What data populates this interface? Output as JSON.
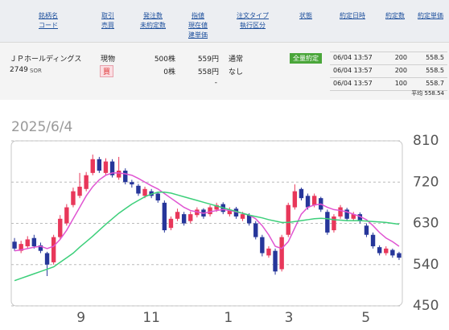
{
  "table": {
    "headers": [
      [
        "銘柄名",
        "コード"
      ],
      [
        "取引",
        "売買"
      ],
      [
        "発注数",
        "未約定数"
      ],
      [
        "指値",
        "現在値",
        "建単価"
      ],
      [
        "注文タイプ",
        "執行区分"
      ],
      [
        "状態"
      ],
      [
        "約定日時"
      ],
      [
        "約定数"
      ],
      [
        "約定単価"
      ]
    ],
    "order": {
      "name": "ＪＰホールディングス",
      "code": "2749",
      "market": "SOR",
      "account": "現物",
      "side": "買",
      "quantity": "500株",
      "unfilled": "0株",
      "limit_price": "559円",
      "current_price": "558円",
      "cost_price": "-",
      "order_type": "通常",
      "condition": "なし",
      "status": "全量約定"
    },
    "executions": [
      [
        "06/04 13:57",
        "200",
        "558.5"
      ],
      [
        "06/04 13:57",
        "200",
        "558.5"
      ],
      [
        "06/04 13:57",
        "100",
        "558.7"
      ]
    ],
    "average": "平均 558.54"
  },
  "chart_data": {
    "type": "candlestick",
    "title": "2025/6/4",
    "categories": [
      null,
      null,
      null,
      null,
      null,
      null,
      null,
      null,
      null,
      null,
      null,
      null,
      null,
      null,
      null,
      null,
      null,
      null,
      null,
      null,
      null,
      null,
      null,
      null,
      null,
      null,
      null,
      null,
      null,
      null,
      null,
      null,
      null,
      null,
      null,
      null,
      null,
      null,
      null,
      null,
      null,
      null,
      null,
      null,
      null,
      null,
      null,
      null,
      null,
      null,
      null,
      null,
      null,
      null,
      null,
      null,
      null,
      null,
      null,
      null
    ],
    "open": [
      590,
      570,
      580,
      598,
      582,
      565,
      545,
      600,
      630,
      670,
      690,
      705,
      740,
      770,
      740,
      765,
      730,
      745,
      720,
      712,
      690,
      700,
      695,
      675,
      620,
      640,
      650,
      635,
      648,
      660,
      650,
      660,
      672,
      650,
      662,
      640,
      648,
      630,
      600,
      560,
      570,
      530,
      605,
      665,
      705,
      690,
      670,
      685,
      655,
      615,
      645,
      660,
      640,
      650,
      625,
      605,
      578,
      565,
      572,
      565
    ],
    "high": [
      598,
      592,
      602,
      605,
      588,
      568,
      605,
      648,
      672,
      708,
      740,
      742,
      780,
      775,
      772,
      770,
      775,
      750,
      725,
      716,
      710,
      705,
      698,
      680,
      645,
      662,
      655,
      656,
      665,
      663,
      670,
      675,
      676,
      665,
      666,
      655,
      652,
      635,
      605,
      580,
      575,
      605,
      675,
      715,
      708,
      695,
      695,
      688,
      660,
      650,
      670,
      664,
      655,
      654,
      630,
      610,
      582,
      580,
      575,
      568
    ],
    "low": [
      570,
      565,
      575,
      575,
      565,
      515,
      540,
      595,
      625,
      665,
      685,
      700,
      735,
      740,
      735,
      730,
      725,
      715,
      708,
      690,
      685,
      685,
      675,
      610,
      615,
      635,
      625,
      630,
      643,
      640,
      645,
      655,
      650,
      645,
      640,
      635,
      625,
      595,
      558,
      555,
      518,
      525,
      600,
      660,
      680,
      660,
      665,
      655,
      605,
      610,
      640,
      635,
      635,
      630,
      600,
      575,
      560,
      560,
      555,
      550
    ],
    "close": [
      575,
      585,
      595,
      580,
      570,
      540,
      600,
      640,
      665,
      700,
      710,
      735,
      770,
      745,
      765,
      735,
      745,
      720,
      715,
      695,
      705,
      690,
      680,
      615,
      640,
      655,
      630,
      650,
      660,
      645,
      665,
      670,
      655,
      660,
      645,
      650,
      630,
      600,
      565,
      575,
      525,
      600,
      670,
      700,
      685,
      665,
      690,
      660,
      610,
      645,
      665,
      640,
      650,
      635,
      605,
      580,
      565,
      575,
      560,
      555
    ],
    "up_color": "#e8375a",
    "down_color": "#26369a",
    "lines": [
      {
        "color": "#e055d2",
        "values": [
          570,
          572,
          575,
          578,
          580,
          575,
          580,
          595,
          615,
          640,
          665,
          690,
          710,
          725,
          735,
          740,
          740,
          738,
          735,
          728,
          720,
          712,
          705,
          695,
          685,
          675,
          665,
          658,
          655,
          652,
          655,
          658,
          660,
          658,
          655,
          652,
          648,
          640,
          625,
          605,
          580,
          575,
          590,
          620,
          650,
          665,
          670,
          672,
          665,
          660,
          658,
          655,
          650,
          645,
          638,
          625,
          610,
          598,
          590,
          580
        ]
      },
      {
        "color": "#3ccf7a",
        "values": [
          505,
          510,
          515,
          520,
          525,
          530,
          535,
          545,
          555,
          565,
          578,
          590,
          602,
          615,
          628,
          640,
          652,
          662,
          672,
          680,
          688,
          694,
          698,
          698,
          696,
          692,
          688,
          684,
          680,
          676,
          672,
          668,
          664,
          660,
          656,
          652,
          648,
          645,
          642,
          638,
          635,
          632,
          632,
          634,
          636,
          638,
          640,
          641,
          640,
          638,
          637,
          636,
          636,
          636,
          635,
          634,
          633,
          632,
          630,
          628
        ]
      }
    ],
    "xlim": [
      -0.5,
      59.5
    ],
    "xticks": [
      {
        "value": 10.2,
        "label": "9"
      },
      {
        "value": 21,
        "label": "11"
      },
      {
        "value": 32.8,
        "label": "1"
      },
      {
        "value": 42.1,
        "label": "3"
      },
      {
        "value": 53.9,
        "label": "5"
      }
    ],
    "ylim": [
      450,
      810
    ],
    "yticks": [
      450,
      540,
      630,
      720,
      810
    ],
    "grid": true
  }
}
